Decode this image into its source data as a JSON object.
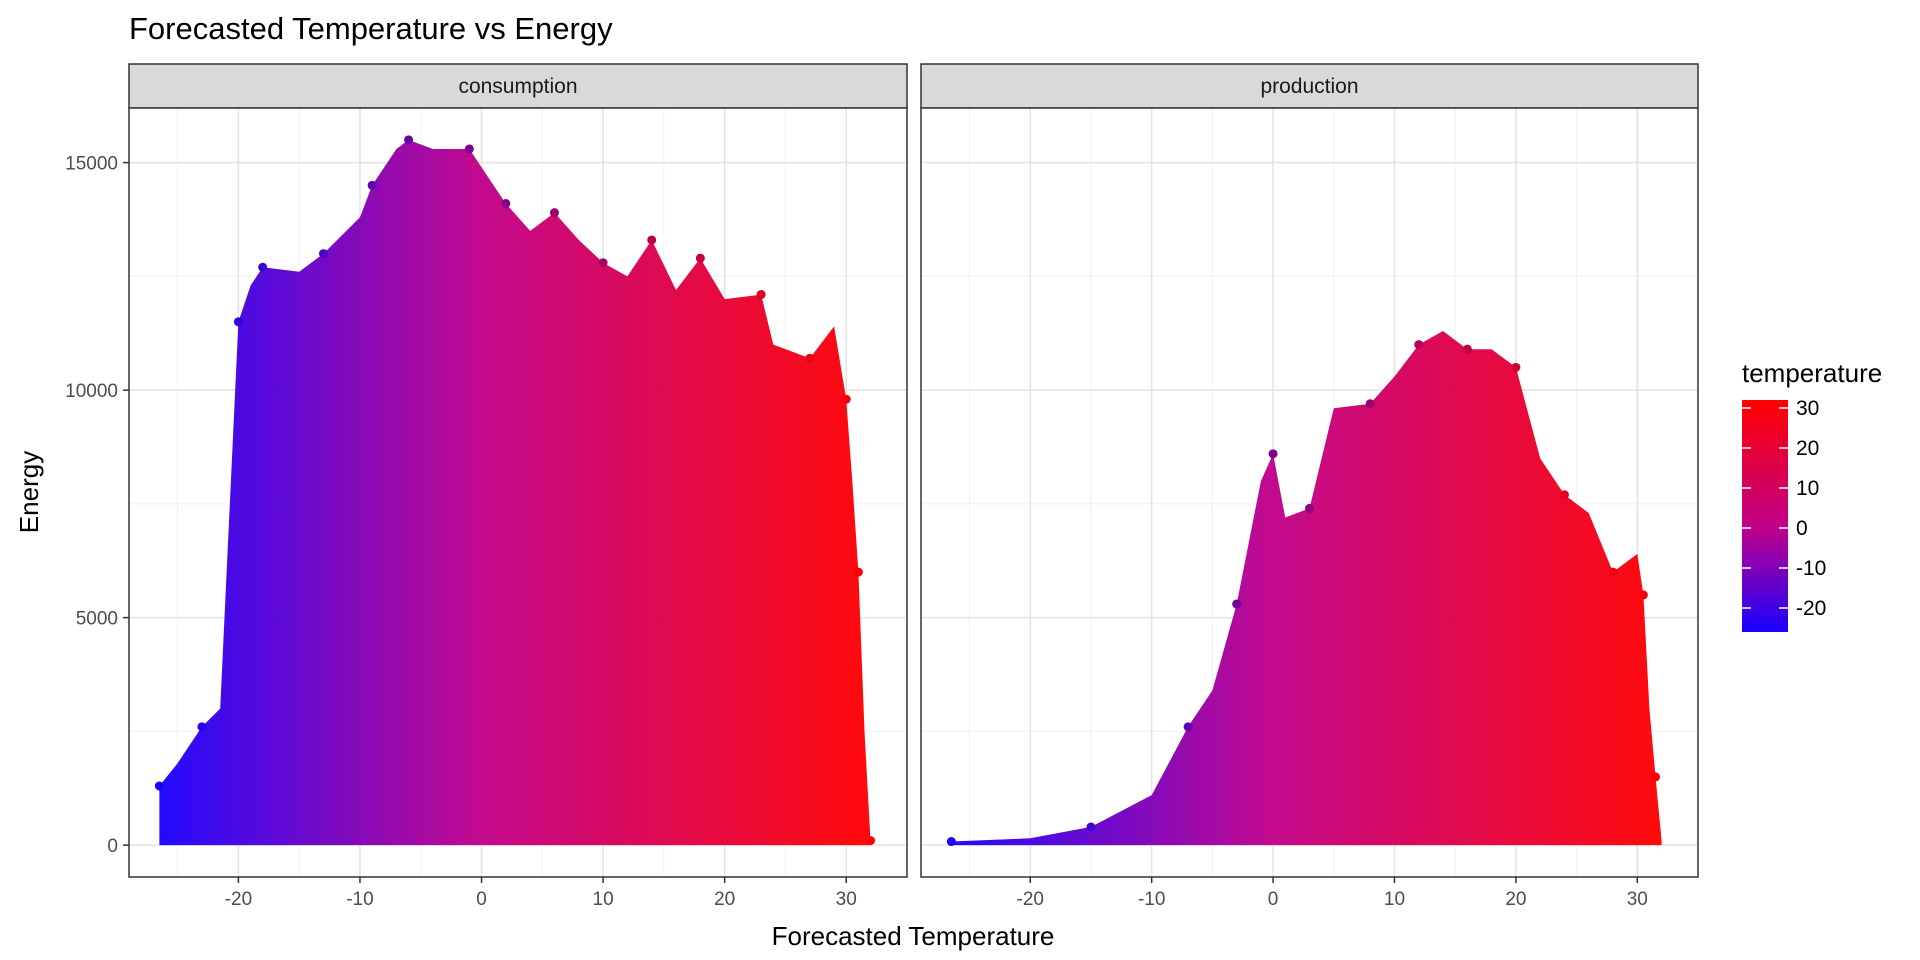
{
  "chart_data": {
    "type": "scatter",
    "title": "Forecasted Temperature vs Energy",
    "xlabel": "Forecasted Temperature",
    "ylabel": "Energy",
    "xlim": [
      -29,
      35
    ],
    "ylim": [
      -700,
      16200
    ],
    "x_ticks": [
      -20,
      -10,
      0,
      10,
      20,
      30
    ],
    "y_ticks": [
      0,
      5000,
      10000,
      15000
    ],
    "grid": true,
    "color_scale": {
      "title": "temperature",
      "low_color": "#1a00ff",
      "mid_color": "#c0008a",
      "high_color": "#ff0000",
      "range": [
        -26,
        32
      ],
      "ticks": [
        -20,
        -10,
        0,
        10,
        20,
        30
      ]
    },
    "legend_position": "right",
    "panels": [
      {
        "name": "consumption",
        "envelope": [
          [
            -26.5,
            1300
          ],
          [
            -25,
            1800
          ],
          [
            -23,
            2600
          ],
          [
            -21.5,
            3000
          ],
          [
            -20,
            11500
          ],
          [
            -19,
            12300
          ],
          [
            -18,
            12700
          ],
          [
            -15,
            12600
          ],
          [
            -13,
            13000
          ],
          [
            -10,
            13800
          ],
          [
            -9,
            14500
          ],
          [
            -7,
            15300
          ],
          [
            -6,
            15500
          ],
          [
            -4,
            15300
          ],
          [
            -1,
            15300
          ],
          [
            0,
            14900
          ],
          [
            2,
            14100
          ],
          [
            4,
            13500
          ],
          [
            6,
            13900
          ],
          [
            8,
            13300
          ],
          [
            10,
            12800
          ],
          [
            12,
            12500
          ],
          [
            14,
            13300
          ],
          [
            16,
            12200
          ],
          [
            18,
            12900
          ],
          [
            20,
            12000
          ],
          [
            23,
            12100
          ],
          [
            24,
            11000
          ],
          [
            27,
            10700
          ],
          [
            29,
            11400
          ],
          [
            30,
            9800
          ],
          [
            30.5,
            8000
          ],
          [
            31,
            6000
          ],
          [
            31.5,
            2500
          ],
          [
            32,
            100
          ]
        ]
      },
      {
        "name": "production",
        "envelope": [
          [
            -26.5,
            80
          ],
          [
            -20,
            150
          ],
          [
            -15,
            400
          ],
          [
            -10,
            1100
          ],
          [
            -7,
            2600
          ],
          [
            -5,
            3400
          ],
          [
            -3,
            5300
          ],
          [
            -1,
            8000
          ],
          [
            0,
            8600
          ],
          [
            1,
            7200
          ],
          [
            3,
            7400
          ],
          [
            5,
            9600
          ],
          [
            8,
            9700
          ],
          [
            10,
            10300
          ],
          [
            12,
            11000
          ],
          [
            14,
            11300
          ],
          [
            16,
            10900
          ],
          [
            18,
            10900
          ],
          [
            20,
            10500
          ],
          [
            22,
            8500
          ],
          [
            24,
            7700
          ],
          [
            26,
            7300
          ],
          [
            28,
            6000
          ],
          [
            30,
            6400
          ],
          [
            30.5,
            5500
          ],
          [
            31,
            3000
          ],
          [
            31.5,
            1500
          ],
          [
            32,
            100
          ]
        ]
      }
    ]
  }
}
